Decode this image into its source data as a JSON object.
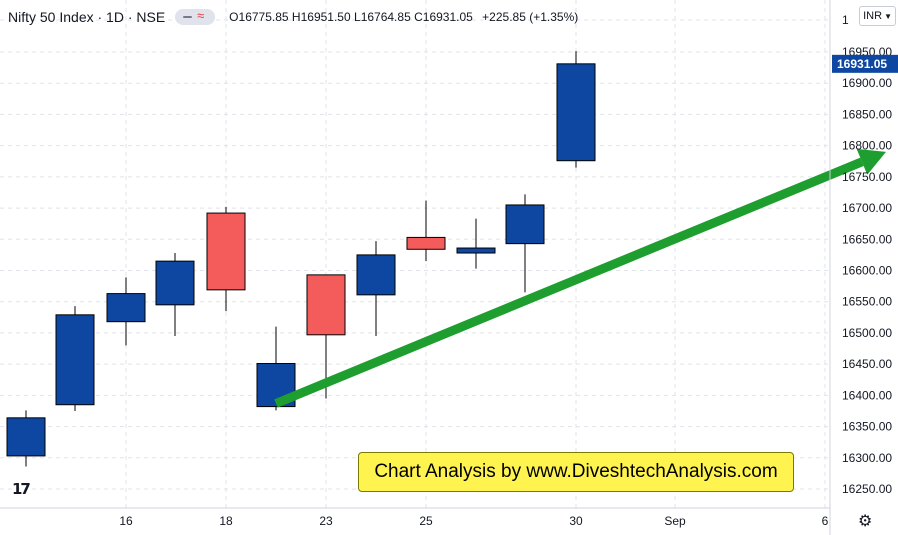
{
  "header": {
    "title": "Nifty 50 Index · 1D · NSE",
    "ohlc": {
      "o_label": "O",
      "o": "16775.85",
      "h_label": "H",
      "h": "16951.50",
      "l_label": "L",
      "l": "16764.85",
      "c_label": "C",
      "c": "16931.05"
    },
    "change": "+225.85 (+1.35%)"
  },
  "currency_button": "INR",
  "current_price_label": "16931.05",
  "banner_text": "Chart Analysis by www.DiveshtechAnalysis.com",
  "logo_text": "17",
  "icons": {
    "settings": "gear-icon",
    "currency_dropdown": "chevron-down-icon",
    "compare": "wave-icon"
  },
  "colors": {
    "up": "#0d47a1",
    "down": "#f45b5b",
    "arrow": "#1e9e2e",
    "banner": "#fff44f",
    "price_label_bg": "#0d47a1"
  },
  "chart_data": {
    "type": "candlestick",
    "y_ticks": [
      "16250.00",
      "16300.00",
      "16350.00",
      "16400.00",
      "16450.00",
      "16500.00",
      "16550.00",
      "16600.00",
      "16650.00",
      "16700.00",
      "16750.00",
      "16800.00",
      "16850.00",
      "16900.00",
      "16950.00",
      "1"
    ],
    "x_ticks": [
      "16",
      "18",
      "23",
      "25",
      "30",
      "Sep",
      "6"
    ],
    "ylim": [
      16228,
      16977
    ],
    "candles": [
      {
        "date": "Aug 12",
        "open": 16303,
        "high": 16376,
        "low": 16286,
        "close": 16364
      },
      {
        "date": "Aug 13",
        "open": 16385,
        "high": 16543,
        "low": 16375,
        "close": 16529
      },
      {
        "date": "Aug 16",
        "open": 16518,
        "high": 16589,
        "low": 16480,
        "close": 16563
      },
      {
        "date": "Aug 17",
        "open": 16545,
        "high": 16628,
        "low": 16495,
        "close": 16615
      },
      {
        "date": "Aug 18",
        "open": 16692,
        "high": 16702,
        "low": 16535,
        "close": 16569
      },
      {
        "date": "Aug 20",
        "open": 16382,
        "high": 16510,
        "low": 16376,
        "close": 16451
      },
      {
        "date": "Aug 23",
        "open": 16593,
        "high": 16593,
        "low": 16395,
        "close": 16497
      },
      {
        "date": "Aug 24",
        "open": 16561,
        "high": 16647,
        "low": 16495,
        "close": 16625
      },
      {
        "date": "Aug 25",
        "open": 16653,
        "high": 16712,
        "low": 16615,
        "close": 16634
      },
      {
        "date": "Aug 26",
        "open": 16628,
        "high": 16683,
        "low": 16603,
        "close": 16636
      },
      {
        "date": "Aug 27",
        "open": 16643,
        "high": 16722,
        "low": 16565,
        "close": 16705
      },
      {
        "date": "Aug 30",
        "open": 16775.85,
        "high": 16951.5,
        "low": 16764.85,
        "close": 16931.05
      }
    ],
    "arrow": {
      "from": {
        "date": "Aug 20",
        "value": 16387
      },
      "to": {
        "date": "Sep 3",
        "value": 16790
      }
    }
  }
}
